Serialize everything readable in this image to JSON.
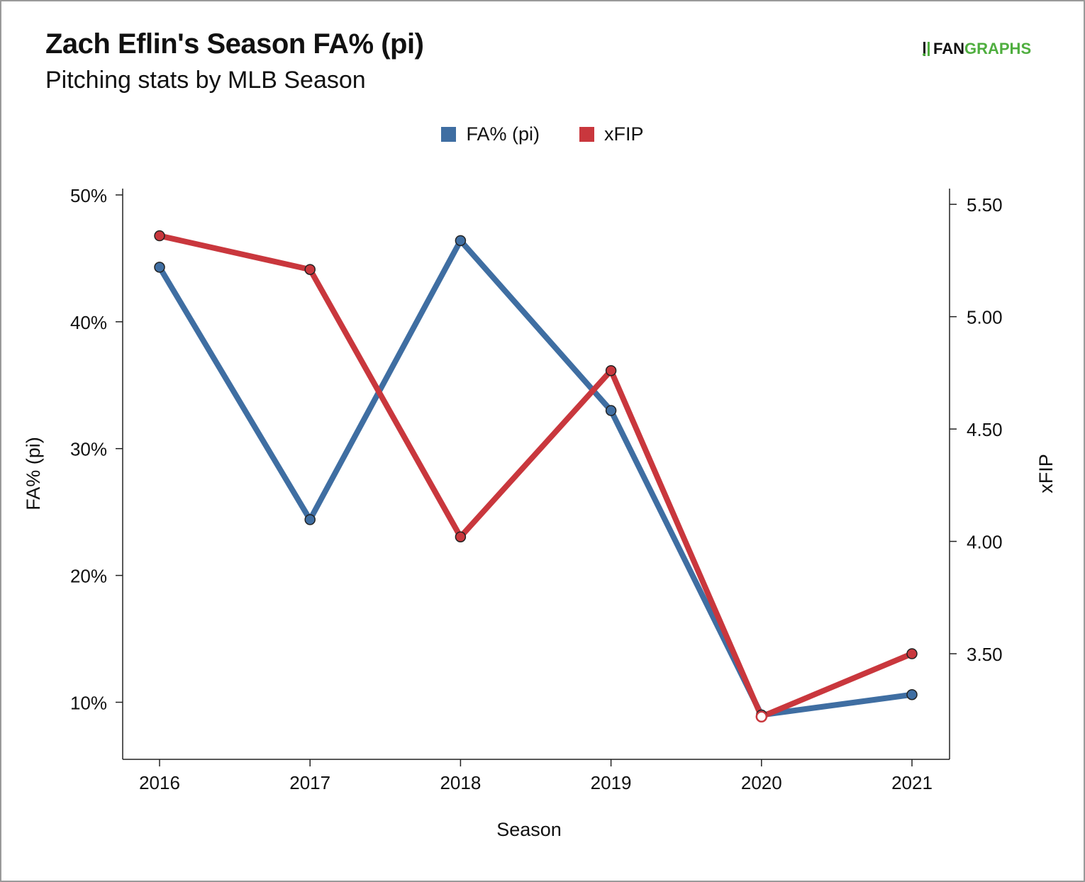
{
  "header": {
    "title": "Zach Eflin's Season FA% (pi)",
    "subtitle": "Pitching stats by MLB Season",
    "logo_text_left": "FAN",
    "logo_text_right": "GRAPHS"
  },
  "colors": {
    "fa_series": "#3f6ea2",
    "xfip_series": "#c9373d",
    "logo_green": "#4fae3f"
  },
  "chart_data": {
    "type": "line",
    "title": "Zach Eflin's Season FA% (pi)",
    "subtitle": "Pitching stats by MLB Season",
    "xlabel": "Season",
    "ylabel_left": "FA% (pi)",
    "ylabel_right": "xFIP",
    "categories": [
      "2016",
      "2017",
      "2018",
      "2019",
      "2020",
      "2021"
    ],
    "y_left": {
      "ylim": [
        5.5,
        50.5
      ],
      "ticks": [
        10,
        20,
        30,
        40,
        50
      ],
      "tick_labels": [
        "10%",
        "20%",
        "30%",
        "40%",
        "50%"
      ]
    },
    "y_right": {
      "ylim": [
        3.03,
        5.57
      ],
      "ticks": [
        3.5,
        4.0,
        4.5,
        5.0,
        5.5
      ],
      "tick_labels": [
        "3.50",
        "4.00",
        "4.50",
        "5.00",
        "5.50"
      ]
    },
    "series": [
      {
        "name": "FA% (pi)",
        "axis": "left",
        "values": [
          44.3,
          24.4,
          46.4,
          33.0,
          9.0,
          10.6
        ]
      },
      {
        "name": "xFIP",
        "axis": "right",
        "values": [
          5.36,
          5.21,
          4.02,
          4.76,
          3.22,
          3.5
        ]
      }
    ],
    "legend_position": "top-center",
    "grid": false
  }
}
